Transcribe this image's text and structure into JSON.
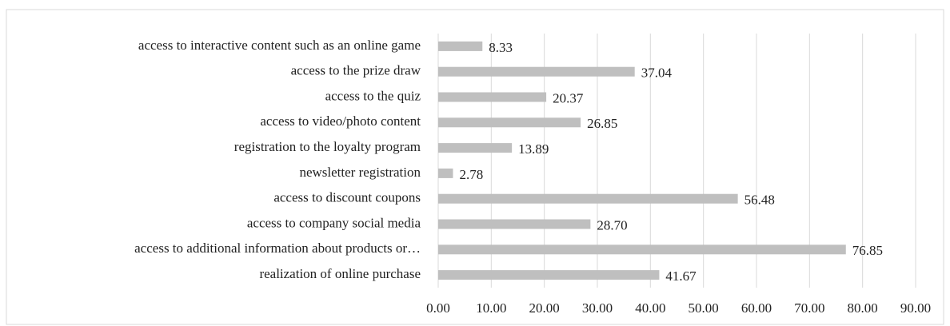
{
  "chart_data": {
    "type": "bar",
    "orientation": "horizontal",
    "categories": [
      "access to interactive content such as an online game",
      "access to the prize draw",
      "access to the quiz",
      "access to video/photo content",
      "registration to the loyalty program",
      "newsletter registration",
      "access to discount coupons",
      "access to company social media",
      "access to additional information about products or…",
      "realization of online purchase"
    ],
    "values": [
      8.33,
      37.04,
      20.37,
      26.85,
      13.89,
      2.78,
      56.48,
      28.7,
      76.85,
      41.67
    ],
    "value_labels": [
      "8.33",
      "37.04",
      "20.37",
      "26.85",
      "13.89",
      "2.78",
      "56.48",
      "28.70",
      "76.85",
      "41.67"
    ],
    "color": "#bfbfbf",
    "xlim": [
      0,
      90
    ],
    "xticks": [
      {
        "value": 0,
        "label": "0.00"
      },
      {
        "value": 10,
        "label": "10.00"
      },
      {
        "value": 20,
        "label": "20.00"
      },
      {
        "value": 30,
        "label": "30.00"
      },
      {
        "value": 40,
        "label": "40.00"
      },
      {
        "value": 50,
        "label": "50.00"
      },
      {
        "value": 60,
        "label": "60.00"
      },
      {
        "value": 70,
        "label": "70.00"
      },
      {
        "value": 80,
        "label": "80.00"
      },
      {
        "value": 90,
        "label": "90.00"
      }
    ],
    "grid": true
  }
}
